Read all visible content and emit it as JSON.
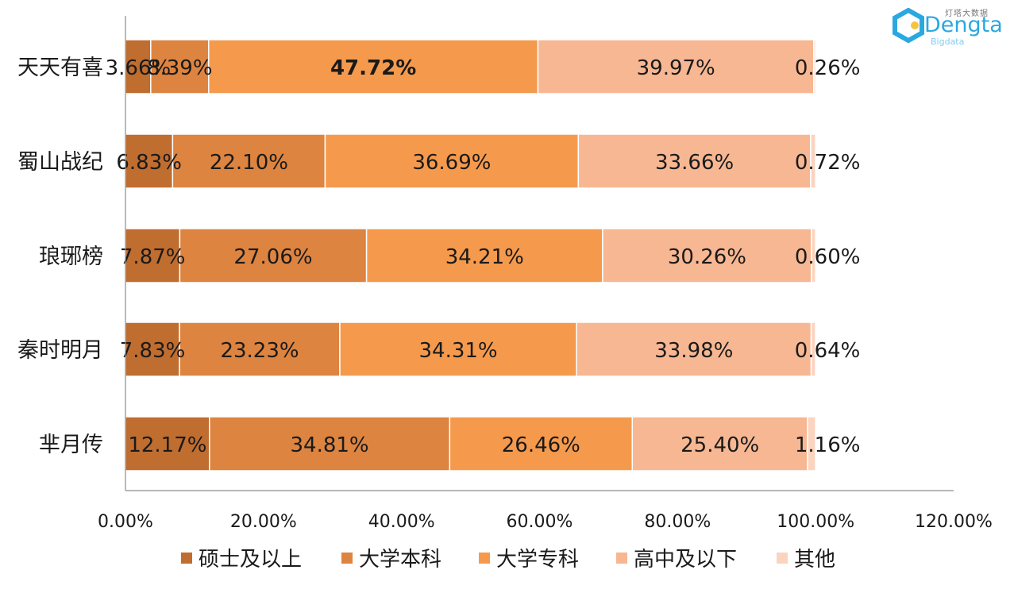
{
  "logo": {
    "word": "Dengta",
    "sub": "Bigdata",
    "cn": "灯塔大数据"
  },
  "chart_data": {
    "type": "bar",
    "orientation": "horizontal",
    "stacked": true,
    "categories": [
      "天天有喜",
      "蜀山战纪",
      "琅琊榜",
      "秦时明月",
      "芈月传"
    ],
    "series": [
      {
        "name": "硕士及以上",
        "color": "#c06d30",
        "values": [
          3.66,
          6.83,
          7.87,
          7.83,
          12.17
        ],
        "labels": [
          "3.66%",
          "6.83%",
          "7.87%",
          "7.83%",
          "12.17%"
        ]
      },
      {
        "name": "大学本科",
        "color": "#dd8440",
        "values": [
          8.39,
          22.1,
          27.06,
          23.23,
          34.81
        ],
        "labels": [
          "8.39%",
          "22.10%",
          "27.06%",
          "23.23%",
          "34.81%"
        ]
      },
      {
        "name": "大学专科",
        "color": "#f59a4d",
        "values": [
          47.72,
          36.69,
          34.21,
          34.31,
          26.46
        ],
        "labels": [
          "47.72%",
          "36.69%",
          "34.21%",
          "34.31%",
          "26.46%"
        ]
      },
      {
        "name": "高中及以下",
        "color": "#f7b792",
        "values": [
          39.97,
          33.66,
          30.26,
          33.98,
          25.4
        ],
        "labels": [
          "39.97%",
          "33.66%",
          "30.26%",
          "33.98%",
          "25.40%"
        ]
      },
      {
        "name": "其他",
        "color": "#fbd4c0",
        "values": [
          0.26,
          0.72,
          0.6,
          0.64,
          1.16
        ],
        "labels": [
          "0.26%",
          "0.72%",
          "0.60%",
          "0.64%",
          "1.16%"
        ]
      }
    ],
    "bold_label": {
      "category_index": 0,
      "series_index": 2
    },
    "xlim": [
      0,
      120
    ],
    "x_ticks": [
      "0.00%",
      "20.00%",
      "40.00%",
      "60.00%",
      "80.00%",
      "100.00%",
      "120.00%"
    ],
    "legend_position": "bottom",
    "grid": false
  }
}
